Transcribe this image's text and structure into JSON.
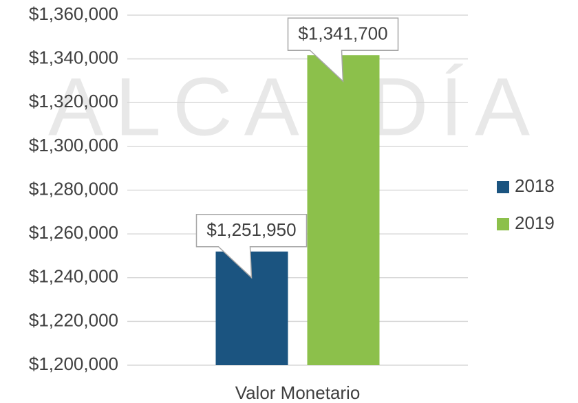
{
  "chart_data": {
    "type": "bar",
    "watermark": "ALCALDÍA",
    "categories": [
      "Valor Monetario"
    ],
    "series": [
      {
        "name": "2018",
        "color": "#1b5480",
        "values": [
          1251950
        ],
        "value_labels": [
          "$1,251,950"
        ]
      },
      {
        "name": "2019",
        "color": "#8cc04b",
        "values": [
          1341700
        ],
        "value_labels": [
          "$1,341,700"
        ]
      }
    ],
    "ylim": [
      1200000,
      1360000
    ],
    "yticks": [
      {
        "value": 1200000,
        "label": "$1,200,000"
      },
      {
        "value": 1220000,
        "label": "$1,220,000"
      },
      {
        "value": 1240000,
        "label": "$1,240,000"
      },
      {
        "value": 1260000,
        "label": "$1,260,000"
      },
      {
        "value": 1280000,
        "label": "$1,280,000"
      },
      {
        "value": 1300000,
        "label": "$1,300,000"
      },
      {
        "value": 1320000,
        "label": "$1,320,000"
      },
      {
        "value": 1340000,
        "label": "$1,340,000"
      },
      {
        "value": 1360000,
        "label": "$1,360,000"
      }
    ],
    "grid": true,
    "legend": "right"
  }
}
